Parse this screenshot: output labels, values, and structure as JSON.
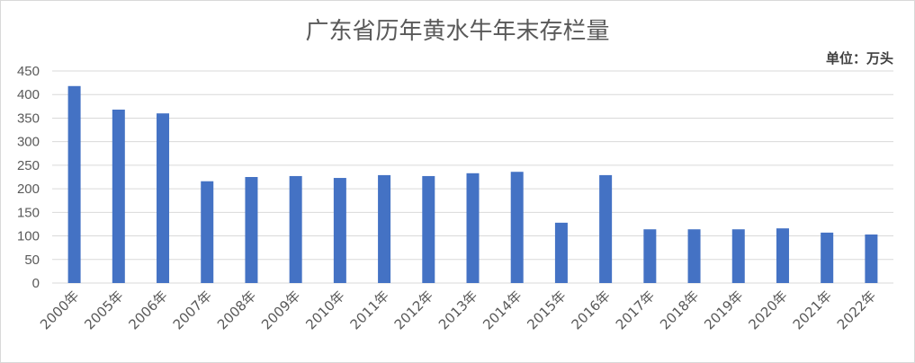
{
  "chart_data": {
    "type": "bar",
    "title": "广东省历年黄水牛年末存栏量",
    "unit_label": "单位：万头",
    "ylim": [
      0,
      450
    ],
    "yticks": [
      0,
      50,
      100,
      150,
      200,
      250,
      300,
      350,
      400,
      450
    ],
    "grid": true,
    "bar_color": "#4472c4",
    "categories": [
      "2000年",
      "2005年",
      "2006年",
      "2007年",
      "2008年",
      "2009年",
      "2010年",
      "2011年",
      "2012年",
      "2013年",
      "2014年",
      "2015年",
      "2016年",
      "2017年",
      "2018年",
      "2019年",
      "2020年",
      "2021年",
      "2022年"
    ],
    "values": [
      418,
      368,
      360,
      216,
      225,
      227,
      223,
      229,
      227,
      233,
      236,
      128,
      229,
      114,
      114,
      114,
      116,
      107,
      103
    ]
  }
}
